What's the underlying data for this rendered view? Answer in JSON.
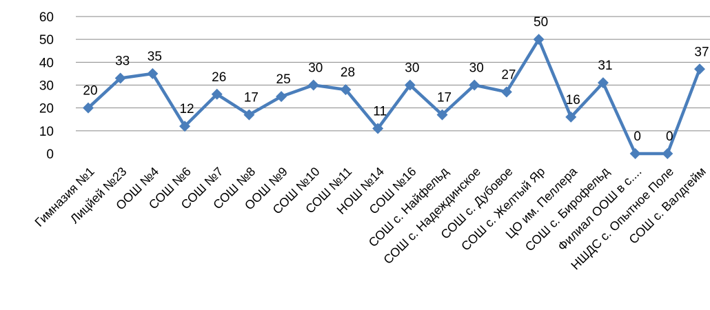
{
  "colors": {
    "series": "#4A7EBB",
    "grid": "#878787",
    "text": "#000000",
    "background": "#FFFFFF"
  },
  "chart_data": {
    "type": "line",
    "title": "",
    "xlabel": "",
    "ylabel": "",
    "ylim": [
      0,
      60
    ],
    "yticks": [
      0,
      10,
      20,
      30,
      40,
      50,
      60
    ],
    "grid": true,
    "legend": "none",
    "marker": "diamond",
    "categories": [
      "Гимназия №1",
      "Лицйей №23",
      "ООШ №4",
      "СОШ №6",
      "СОШ №7",
      "СОШ №8",
      "ООШ №9",
      "СОШ №10",
      "СОШ №11",
      "НОШ №14",
      "СОШ №16",
      "СОШ с. Найфельд",
      "СОШ с. Надеждинское",
      "СОШ с. Дубовое",
      "СОШ с. Желтый Яр",
      "ЦО им. Пеллера",
      "СОШ с. Бирофельд",
      "Филиал ООШ в с....",
      "НШДС с. Опытное Поле",
      "СОШ с. Валдгейм"
    ],
    "series": [
      {
        "values": [
          20,
          33,
          35,
          12,
          26,
          17,
          25,
          30,
          28,
          11,
          30,
          17,
          30,
          27,
          50,
          16,
          31,
          0,
          0,
          37
        ],
        "data_labels": [
          "20",
          "33",
          "35",
          "12",
          "26",
          "17",
          "25",
          "30",
          "28",
          "11",
          "30",
          "17",
          "30",
          "27",
          "50",
          "16",
          "31",
          "0",
          "0",
          "37"
        ]
      }
    ]
  }
}
